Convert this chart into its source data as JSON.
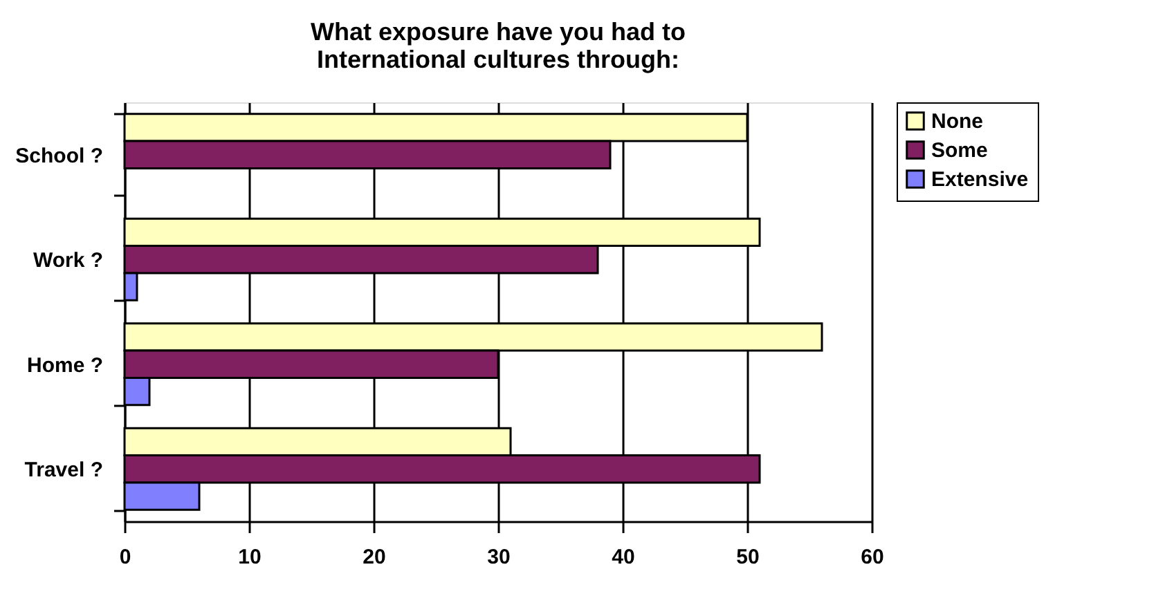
{
  "chart_data": {
    "type": "bar",
    "orientation": "horizontal",
    "title": "What exposure have you had to International cultures through:",
    "categories": [
      "School ?",
      "Work ?",
      "Home ?",
      "Travel ?"
    ],
    "series": [
      {
        "name": "None",
        "color": "#ffffc0",
        "values": [
          50,
          51,
          56,
          31
        ]
      },
      {
        "name": "Some",
        "color": "#802060",
        "values": [
          39,
          38,
          30,
          51
        ]
      },
      {
        "name": "Extensive",
        "color": "#8080ff",
        "values": [
          0,
          1,
          2,
          6
        ]
      }
    ],
    "xlim": [
      0,
      60
    ],
    "xticks": [
      0,
      10,
      20,
      30,
      40,
      50,
      60
    ],
    "grid": "x",
    "legend": "right"
  }
}
